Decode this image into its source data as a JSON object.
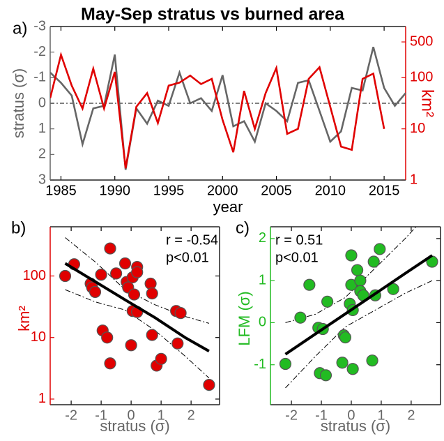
{
  "chart_data": [
    {
      "type": "line",
      "panel": "a)",
      "title": "May-Sep stratus vs burned area",
      "x": [
        1984,
        1985,
        1986,
        1987,
        1988,
        1989,
        1990,
        1991,
        1992,
        1993,
        1994,
        1995,
        1996,
        1997,
        1998,
        1999,
        2000,
        2001,
        2002,
        2003,
        2004,
        2005,
        2006,
        2007,
        2008,
        2009,
        2010,
        2011,
        2012,
        2013,
        2014,
        2015,
        2016,
        2017
      ],
      "xlim": [
        1984,
        2017
      ],
      "xticks": [
        1985,
        1990,
        1995,
        2000,
        2005,
        2010,
        2015
      ],
      "xlabel": "year",
      "ylabel": "stratus (σ)",
      "ylim": [
        3,
        -3
      ],
      "yticks": [
        -3,
        -2,
        -1,
        0,
        1,
        2,
        3
      ],
      "ycolor": "#666666",
      "y2label": "km²",
      "y2lim": [
        1,
        1000
      ],
      "y2log": true,
      "y2ticks": [
        1,
        10,
        100,
        500
      ],
      "y2color": "#e00000",
      "zero_line": true,
      "series": [
        {
          "color": "#666666",
          "values": [
            -1.2,
            -0.8,
            -0.3,
            1.6,
            0.2,
            0.1,
            -1.9,
            2.6,
            0.2,
            0.8,
            -0.1,
            0.1,
            -1.2,
            0.0,
            -0.2,
            0.3,
            -1.1,
            0.9,
            0.7,
            1.5,
            0.0,
            0.3,
            0.7,
            -0.8,
            -0.9,
            0.3,
            1.5,
            1.1,
            -0.6,
            -0.5,
            -2.2,
            -0.6,
            0.1,
            -0.4
          ]
        },
        {
          "color": "#e00000",
          "axis": "y2",
          "values": [
            40,
            280,
            70,
            25,
            150,
            25,
            130,
            1.7,
            27,
            50,
            13,
            70,
            80,
            110,
            75,
            95,
            15,
            3.5,
            55,
            10,
            50,
            155,
            8,
            10,
            95,
            160,
            27,
            4.5,
            3.9,
            95,
            120,
            10,
            null,
            null
          ]
        }
      ]
    },
    {
      "type": "scatter",
      "panel": "b)",
      "x": [
        -2.2,
        -1.9,
        -1.35,
        -1.3,
        -1.2,
        -1.0,
        -0.95,
        -0.8,
        -0.7,
        -0.7,
        -0.5,
        -0.2,
        -0.15,
        -0.1,
        0.0,
        0.05,
        0.05,
        0.1,
        0.2,
        0.2,
        0.2,
        0.65,
        0.7,
        0.7,
        0.85,
        1.0,
        1.5,
        1.55,
        1.65,
        2.6
      ],
      "values": [
        100,
        155,
        75,
        65,
        55,
        105,
        13,
        10,
        3.8,
        280,
        110,
        160,
        80,
        65,
        7.5,
        95,
        27,
        50,
        140,
        115,
        26,
        75,
        52,
        11,
        3.5,
        4.5,
        27,
        8,
        25,
        1.7
      ],
      "color": "#e00000",
      "xlim": [
        -2.7,
        2.95
      ],
      "xticks": [
        -2,
        -1,
        0,
        1,
        2
      ],
      "xlabel": "stratus (σ)",
      "ylim": [
        0.81,
        630
      ],
      "ylog": true,
      "yticks": [
        1,
        10,
        100
      ],
      "ylabel": "km²",
      "ycolor": "#e00000",
      "annotations": [
        "r = -0.54",
        "p<0.01"
      ],
      "annotation_corner": "top-right",
      "fit": {
        "x": [
          -2.2,
          -1.2,
          -0.2,
          0.8,
          1.8,
          2.6
        ],
        "values": [
          160,
          81,
          41,
          21,
          10,
          6
        ],
        "lower": [
          60,
          38,
          28,
          13,
          5,
          2.2
        ],
        "upper": [
          420,
          170,
          60,
          34,
          22,
          17
        ]
      }
    },
    {
      "type": "scatter",
      "panel": "c)",
      "x": [
        -2.2,
        -1.7,
        -1.4,
        -1.1,
        -1.05,
        -0.95,
        -0.85,
        -0.8,
        -0.3,
        -0.25,
        -0.2,
        -0.05,
        0.0,
        0.0,
        0.05,
        0.05,
        0.2,
        0.3,
        0.3,
        0.4,
        0.7,
        0.75,
        0.8,
        0.95,
        1.4,
        2.7
      ],
      "values": [
        -0.98,
        0.12,
        0.9,
        -0.12,
        -1.2,
        -0.15,
        -1.25,
        0.5,
        -0.95,
        -0.3,
        -0.35,
        0.45,
        1.6,
        0.9,
        -1.1,
        0.3,
        1.25,
        1.0,
        0.75,
        0.65,
        -0.9,
        1.45,
        0.65,
        1.75,
        0.8,
        1.45
      ],
      "color": "#22bb22",
      "xlim": [
        -2.7,
        2.98
      ],
      "xticks": [
        -2,
        -1,
        0,
        1,
        2
      ],
      "xlabel": "stratus (σ)",
      "ylim": [
        -1.95,
        2.28
      ],
      "yticks": [
        -1,
        0,
        1,
        2
      ],
      "ylabel": "LFM (σ)",
      "ycolor": "#22bb22",
      "annotations": [
        "r = 0.51",
        "p<0.01"
      ],
      "annotation_corner": "top-left",
      "fit": {
        "x": [
          -2.2,
          -1.2,
          -0.2,
          0.8,
          1.8,
          2.7
        ],
        "values": [
          -0.75,
          -0.27,
          0.21,
          0.69,
          1.17,
          1.6
        ],
        "lower": [
          -1.55,
          -0.8,
          -0.1,
          0.3,
          0.7,
          1.0
        ],
        "upper": [
          0.0,
          0.2,
          0.6,
          1.3,
          2.0,
          2.7
        ]
      }
    }
  ]
}
